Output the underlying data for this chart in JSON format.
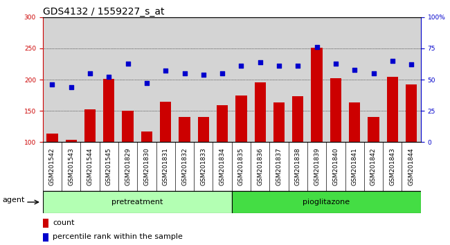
{
  "title": "GDS4132 / 1559227_s_at",
  "samples": [
    "GSM201542",
    "GSM201543",
    "GSM201544",
    "GSM201545",
    "GSM201829",
    "GSM201830",
    "GSM201831",
    "GSM201832",
    "GSM201833",
    "GSM201834",
    "GSM201835",
    "GSM201836",
    "GSM201837",
    "GSM201838",
    "GSM201839",
    "GSM201840",
    "GSM201841",
    "GSM201842",
    "GSM201843",
    "GSM201844"
  ],
  "counts": [
    114,
    104,
    152,
    201,
    150,
    117,
    165,
    140,
    140,
    159,
    175,
    196,
    164,
    173,
    251,
    202,
    163,
    140,
    204,
    192
  ],
  "percentile": [
    46,
    44,
    55,
    52,
    63,
    47,
    57,
    55,
    54,
    55,
    61,
    64,
    61,
    61,
    76,
    63,
    58,
    55,
    65,
    62
  ],
  "bar_color": "#cc0000",
  "dot_color": "#0000cc",
  "pretreatment_count": 10,
  "pioglitazone_count": 10,
  "pretreatment_color": "#b3ffb3",
  "pioglitazone_color": "#44dd44",
  "ylim_left": [
    100,
    300
  ],
  "yticks_left": [
    100,
    150,
    200,
    250,
    300
  ],
  "ylim_right": [
    0,
    100
  ],
  "yticks_right": [
    0,
    25,
    50,
    75,
    100
  ],
  "plot_bg": "#d4d4d4",
  "label_bg": "#c8c8c8",
  "grid_color": "black",
  "agent_label": "agent",
  "pretreatment_label": "pretreatment",
  "pioglitazone_label": "pioglitazone",
  "legend_count": "count",
  "legend_percentile": "percentile rank within the sample",
  "title_fontsize": 10,
  "tick_fontsize": 6.5,
  "label_fontsize": 8
}
